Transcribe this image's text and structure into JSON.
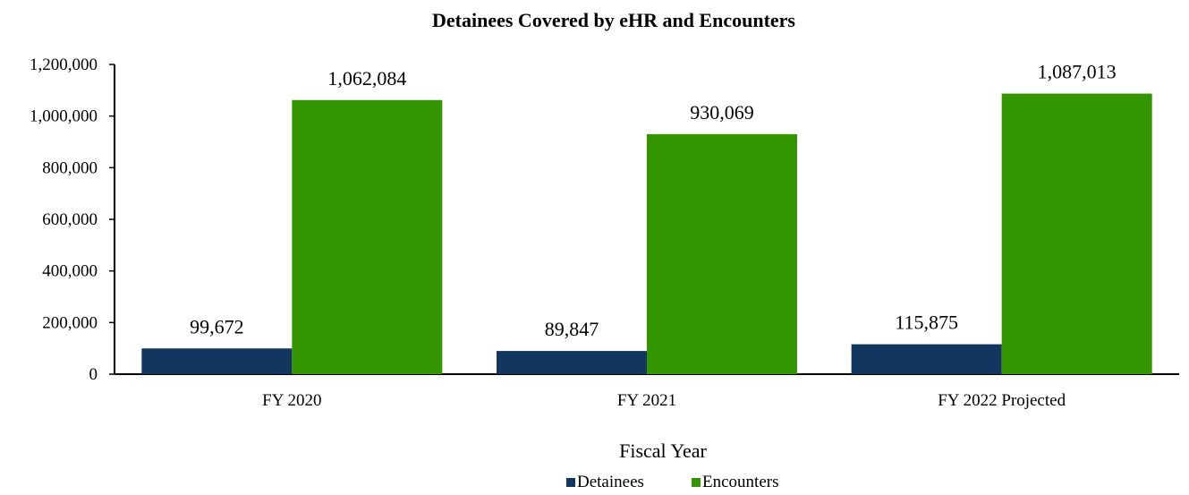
{
  "chart_data": {
    "type": "bar",
    "title": "Detainees Covered by eHR and Encounters",
    "xlabel": "Fiscal Year",
    "ylabel": "",
    "categories": [
      "FY 2020",
      "FY 2021",
      "FY 2022 Projected"
    ],
    "series": [
      {
        "name": "Detainees",
        "color": "#12365f",
        "values": [
          99672,
          89847,
          115875
        ],
        "labels": [
          "99,672",
          "89,847",
          "115,875"
        ]
      },
      {
        "name": "Encounters",
        "color": "#339600",
        "values": [
          1062084,
          930069,
          1087013
        ],
        "labels": [
          "1,062,084",
          "930,069",
          "1,087,013"
        ]
      }
    ],
    "ylim": [
      0,
      1200000
    ],
    "yticks": [
      0,
      200000,
      400000,
      600000,
      800000,
      1000000,
      1200000
    ],
    "ytick_labels": [
      "0",
      "200,000",
      "400,000",
      "600,000",
      "800,000",
      "1,000,000",
      "1,200,000"
    ],
    "grid": false,
    "legend_position": "bottom-center"
  }
}
